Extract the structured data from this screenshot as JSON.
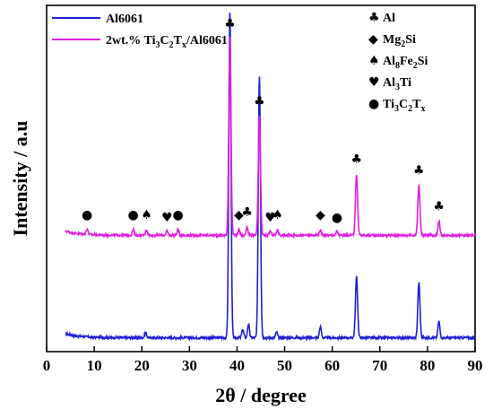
{
  "chart_data": {
    "type": "line",
    "xlabel": "2θ / degree",
    "ylabel": "Intensity / a.u",
    "xlim": [
      0,
      90
    ],
    "x_ticks": [
      0,
      10,
      20,
      30,
      40,
      50,
      60,
      70,
      80,
      90
    ],
    "y_ticks_shown": false,
    "grid": false,
    "legend_position": "top-left",
    "series": [
      {
        "name": "Al6061",
        "color": "#1f1fd6",
        "baseline": 0.05,
        "peaks": [
          {
            "x": 20.8,
            "h": 0.02
          },
          {
            "x": 38.5,
            "h": 1.18
          },
          {
            "x": 41.2,
            "h": 0.03
          },
          {
            "x": 42.4,
            "h": 0.05
          },
          {
            "x": 44.7,
            "h": 0.95
          },
          {
            "x": 48.3,
            "h": 0.02
          },
          {
            "x": 57.5,
            "h": 0.04
          },
          {
            "x": 65.1,
            "h": 0.22
          },
          {
            "x": 78.2,
            "h": 0.2
          },
          {
            "x": 82.4,
            "h": 0.06
          }
        ]
      },
      {
        "name": "2wt.% Ti3C2Tx/Al6061",
        "color": "#e020e0",
        "baseline": 0.42,
        "peaks": [
          {
            "x": 8.5,
            "h": 0.02
          },
          {
            "x": 18.2,
            "h": 0.02
          },
          {
            "x": 21.0,
            "h": 0.02
          },
          {
            "x": 25.3,
            "h": 0.015
          },
          {
            "x": 27.6,
            "h": 0.02
          },
          {
            "x": 38.5,
            "h": 0.72
          },
          {
            "x": 40.4,
            "h": 0.02
          },
          {
            "x": 42.1,
            "h": 0.03
          },
          {
            "x": 44.7,
            "h": 0.43
          },
          {
            "x": 47.0,
            "h": 0.015
          },
          {
            "x": 48.5,
            "h": 0.02
          },
          {
            "x": 57.5,
            "h": 0.02
          },
          {
            "x": 61.0,
            "h": 0.015
          },
          {
            "x": 65.1,
            "h": 0.22
          },
          {
            "x": 78.2,
            "h": 0.18
          },
          {
            "x": 82.4,
            "h": 0.05
          }
        ]
      }
    ],
    "phases": [
      {
        "symbol": "♣",
        "name": "Al"
      },
      {
        "symbol": "◆",
        "name": "Mg",
        "sub": "2",
        "rest": "Si"
      },
      {
        "symbol": "♠",
        "name": "Al",
        "sub": "8",
        "rest": "Fe",
        "sub2": "2",
        "rest2": "Si"
      },
      {
        "symbol": "♥",
        "name": "Al",
        "sub": "3",
        "rest": "Ti"
      },
      {
        "symbol": "●",
        "name": "Ti",
        "sub": "3",
        "rest": "C",
        "sub2": "2",
        "rest2": "T",
        "sub3": "x"
      }
    ],
    "peak_markers": [
      {
        "x": 8.5,
        "symbol": "●",
        "level": 0.47
      },
      {
        "x": 18.2,
        "symbol": "●",
        "level": 0.47
      },
      {
        "x": 21.0,
        "symbol": "♠",
        "level": 0.47
      },
      {
        "x": 25.3,
        "symbol": "♥",
        "level": 0.46
      },
      {
        "x": 27.6,
        "symbol": "●",
        "level": 0.47
      },
      {
        "x": 38.5,
        "symbol": "♣",
        "level": 1.16
      },
      {
        "x": 40.4,
        "symbol": "◆",
        "level": 0.47
      },
      {
        "x": 42.1,
        "symbol": "♣",
        "level": 0.48
      },
      {
        "x": 44.7,
        "symbol": "♣",
        "level": 0.88
      },
      {
        "x": 47.0,
        "symbol": "♥",
        "level": 0.46
      },
      {
        "x": 48.5,
        "symbol": "♠",
        "level": 0.47
      },
      {
        "x": 57.5,
        "symbol": "◆",
        "level": 0.47
      },
      {
        "x": 61.0,
        "symbol": "●",
        "level": 0.46
      },
      {
        "x": 65.1,
        "symbol": "♣",
        "level": 0.67
      },
      {
        "x": 78.2,
        "symbol": "♣",
        "level": 0.63
      },
      {
        "x": 82.4,
        "symbol": "♣",
        "level": 0.5
      }
    ]
  },
  "legend": {
    "series1_label": "Al6061",
    "series2_prefix": "2wt.% Ti",
    "series2_sub1": "3",
    "series2_mid1": "C",
    "series2_sub2": "2",
    "series2_mid2": "T",
    "series2_sub3": "x",
    "series2_suffix": "/Al6061"
  }
}
